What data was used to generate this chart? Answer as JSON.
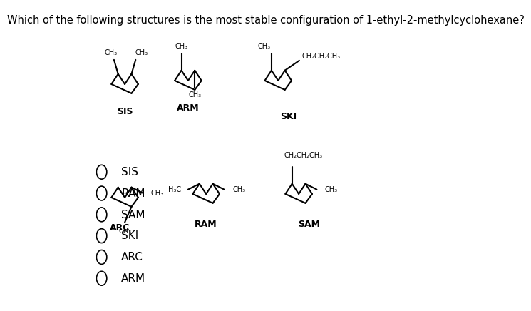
{
  "title": "Which of the following structures is the most stable configuration of 1-ethyl-2-methylcyclohexane?",
  "title_fontsize": 10.5,
  "bg_color": "#ffffff",
  "options": [
    "SIS",
    "RAM",
    "SAM",
    "SKI",
    "ARC",
    "ARM"
  ],
  "fs_sub": 7,
  "fs_lbl": 9,
  "lw": 1.5
}
